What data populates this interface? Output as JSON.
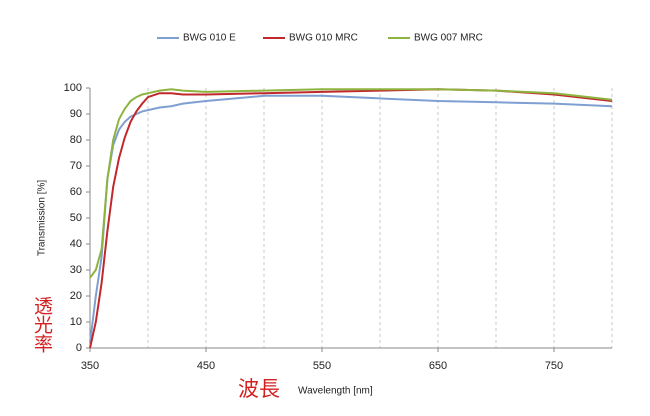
{
  "chart_data": {
    "type": "line",
    "x_label": "Wavelength [nm]",
    "y_label": "Transmission [%]",
    "x_annotation": "波長",
    "y_annotation": "透光率",
    "x": [
      350,
      355,
      360,
      365,
      370,
      375,
      380,
      385,
      390,
      395,
      400,
      410,
      420,
      430,
      450,
      500,
      550,
      600,
      650,
      700,
      750,
      800
    ],
    "series": [
      {
        "name": "BWG 010 E",
        "color": "#7f9fd2",
        "values": [
          2,
          20,
          35,
          65,
          78,
          84,
          87,
          89,
          90,
          91,
          91.5,
          92.5,
          93,
          94,
          95,
          97,
          97,
          96,
          95,
          94.5,
          94,
          93
        ]
      },
      {
        "name": "BWG 010 MRC",
        "color": "#c0282c",
        "values": [
          0,
          10,
          25,
          45,
          62,
          73,
          81,
          87,
          91,
          94,
          96.5,
          98,
          98,
          97.5,
          97.5,
          98,
          98.5,
          99,
          99.5,
          99,
          97.5,
          95
        ]
      },
      {
        "name": "BWG 007 MRC",
        "color": "#8db43f",
        "values": [
          27,
          30,
          38,
          65,
          80,
          88,
          92,
          95,
          96.5,
          97.5,
          98,
          99,
          99.5,
          99,
          98.5,
          99,
          99.5,
          99.5,
          99.5,
          99,
          98,
          95.5
        ]
      }
    ],
    "xlim": [
      350,
      800
    ],
    "xticks": [
      350,
      450,
      550,
      650,
      750
    ],
    "x_gridlines": [
      400,
      450,
      500,
      550,
      600,
      650,
      700,
      750,
      800
    ],
    "ylim": [
      0,
      100
    ],
    "yticks": [
      0,
      10,
      20,
      30,
      40,
      50,
      60,
      70,
      80,
      90,
      100
    ],
    "legend": "top"
  }
}
